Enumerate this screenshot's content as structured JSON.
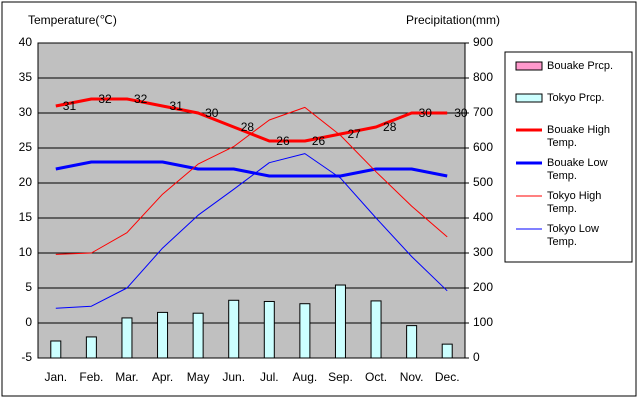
{
  "chart_data": {
    "type": "bar",
    "y_title": "Temperature(℃)",
    "y2_title": "Precipitation(mm)",
    "categories": [
      "Jan.",
      "Feb.",
      "Mar.",
      "Apr.",
      "May",
      "Jun.",
      "Jul.",
      "Aug.",
      "Sep.",
      "Oct.",
      "Nov.",
      "Dec."
    ],
    "ylim": [
      -5,
      40
    ],
    "yticks": [
      -5,
      0,
      5,
      10,
      15,
      20,
      25,
      30,
      35,
      40
    ],
    "y2lim": [
      0,
      900
    ],
    "y2ticks": [
      0,
      100,
      200,
      300,
      400,
      500,
      600,
      700,
      800,
      900
    ],
    "grid": true,
    "legend": "right",
    "plot_background": "#c0c0c0",
    "series": [
      {
        "name": "Bouake Prcp.",
        "type": "bar",
        "axis": "y2",
        "color": "#ff99cc",
        "values": [
          null,
          null,
          null,
          null,
          null,
          null,
          null,
          null,
          null,
          null,
          null,
          null
        ]
      },
      {
        "name": "Tokyo Prcp.",
        "type": "bar",
        "axis": "y2",
        "color": "#ccffff",
        "values": [
          48.6,
          60.2,
          114.5,
          130.3,
          128,
          164.9,
          161.5,
          155.1,
          208.5,
          163.1,
          92.5,
          39.6
        ]
      },
      {
        "name": "Bouake High Temp.",
        "type": "line",
        "color": "#ff0000",
        "values": [
          31,
          32,
          32,
          31,
          30,
          28,
          26,
          26,
          27,
          28,
          30,
          30
        ],
        "value_labels": [
          "31",
          "32",
          "32",
          "31",
          "30",
          "28",
          "26",
          "26",
          "27",
          "28",
          "30",
          "30"
        ]
      },
      {
        "name": "Bouake Low Temp.",
        "type": "line",
        "color": "#0000ff",
        "values": [
          22,
          23,
          23,
          23,
          22,
          22,
          21,
          21,
          21,
          22,
          22,
          21
        ]
      },
      {
        "name": "Tokyo High Temp.",
        "type": "line",
        "color": "#ff0000",
        "values": [
          9.8,
          10.0,
          12.9,
          18.4,
          22.7,
          25.2,
          29.0,
          30.8,
          26.8,
          21.6,
          16.7,
          12.3
        ]
      },
      {
        "name": "Tokyo Low Temp.",
        "type": "line",
        "color": "#0000ff",
        "values": [
          2.1,
          2.4,
          5.0,
          10.7,
          15.4,
          19.1,
          22.9,
          24.2,
          20.7,
          15.0,
          9.5,
          4.6
        ]
      }
    ]
  }
}
